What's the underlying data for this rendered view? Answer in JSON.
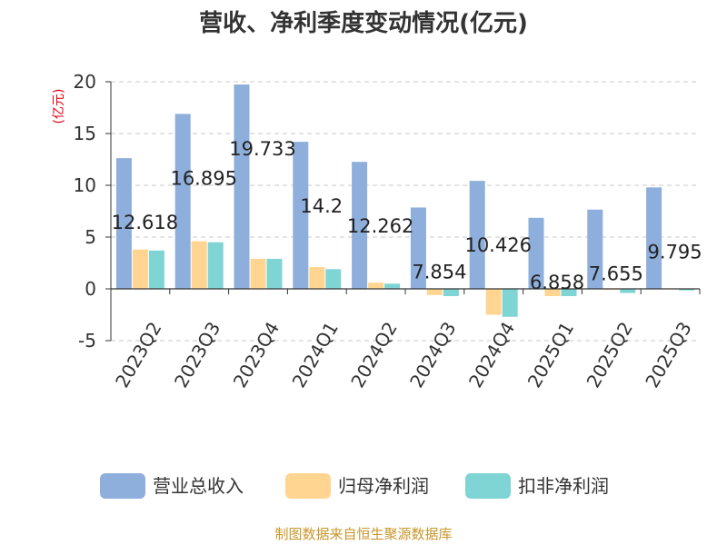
{
  "chart_data": {
    "type": "bar",
    "title": "营收、净利季度变动情况(亿元)",
    "unit_label": "(亿元)",
    "categories": [
      "2023Q2",
      "2023Q3",
      "2023Q4",
      "2024Q1",
      "2024Q2",
      "2024Q3",
      "2024Q4",
      "2025Q1",
      "2025Q2",
      "2025Q3"
    ],
    "series": [
      {
        "name": "营业总收入",
        "color": "#8eaedb",
        "values": [
          12.618,
          16.895,
          19.733,
          14.2,
          12.262,
          7.854,
          10.426,
          6.858,
          7.655,
          9.795
        ]
      },
      {
        "name": "归母净利润",
        "color": "#ffd591",
        "values": [
          3.8,
          4.6,
          2.9,
          2.1,
          0.6,
          -0.6,
          -2.5,
          -0.7,
          -0.1,
          -0.05
        ]
      },
      {
        "name": "扣非净利润",
        "color": "#7fd4d4",
        "values": [
          3.7,
          4.5,
          2.9,
          1.9,
          0.5,
          -0.7,
          -2.7,
          -0.7,
          -0.4,
          -0.15
        ]
      }
    ],
    "data_labels": [
      "12.618",
      "16.895",
      "19.733",
      "14.2",
      "12.262",
      "7.854",
      "10.426",
      "6.858",
      "7.655",
      "9.795"
    ],
    "ylim": [
      -5,
      20
    ],
    "yticks": [
      20,
      15,
      10,
      5,
      0,
      -5
    ],
    "grid": true,
    "legend_position": "bottom"
  },
  "source_text": "制图数据来自恒生聚源数据库"
}
